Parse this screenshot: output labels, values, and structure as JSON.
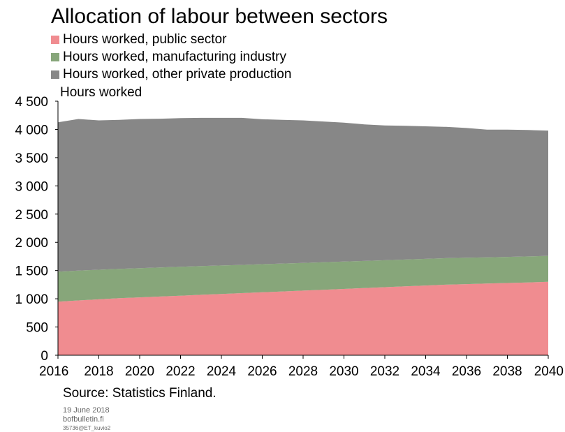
{
  "chart_data": {
    "type": "area",
    "stacked": true,
    "title": "Allocation of labour between sectors",
    "ylabel": "Hours worked",
    "x": [
      2016,
      2017,
      2018,
      2019,
      2020,
      2021,
      2022,
      2023,
      2024,
      2025,
      2026,
      2027,
      2028,
      2029,
      2030,
      2031,
      2032,
      2033,
      2034,
      2035,
      2036,
      2037,
      2038,
      2039,
      2040
    ],
    "xticks": [
      2016,
      2018,
      2020,
      2022,
      2024,
      2026,
      2028,
      2030,
      2032,
      2034,
      2036,
      2038,
      2040
    ],
    "yticks": [
      0,
      500,
      1000,
      1500,
      2000,
      2500,
      3000,
      3500,
      4000,
      4500
    ],
    "ytick_labels": [
      "0",
      "500",
      "1 000",
      "1 500",
      "2 000",
      "2 500",
      "3 000",
      "3 500",
      "4 000",
      "4 500"
    ],
    "ylim": [
      0,
      4500
    ],
    "xlim": [
      2016,
      2040
    ],
    "grid": false,
    "legend_position": "top-left",
    "series": [
      {
        "name": "Hours worked, public sector",
        "color": "#f08c90",
        "values": [
          950,
          970,
          990,
          1010,
          1025,
          1040,
          1055,
          1070,
          1085,
          1100,
          1115,
          1130,
          1145,
          1160,
          1175,
          1190,
          1205,
          1220,
          1235,
          1250,
          1260,
          1270,
          1280,
          1290,
          1300
        ]
      },
      {
        "name": "Hours worked, manufacturing industry",
        "color": "#87a67a",
        "values": [
          530,
          530,
          525,
          520,
          518,
          515,
          512,
          510,
          505,
          500,
          498,
          495,
          490,
          488,
          485,
          480,
          478,
          475,
          472,
          470,
          468,
          465,
          462,
          460,
          460
        ]
      },
      {
        "name": "Hours worked, other private production",
        "color": "#878787",
        "values": [
          2645,
          2685,
          2645,
          2640,
          2642,
          2635,
          2633,
          2625,
          2615,
          2605,
          2567,
          2545,
          2525,
          2492,
          2460,
          2420,
          2387,
          2370,
          2348,
          2325,
          2297,
          2260,
          2253,
          2240,
          2220
        ]
      }
    ]
  },
  "footer": {
    "source": "Source: Statistics Finland.",
    "date": "19 June 2018",
    "site": "bofbulletin.fi",
    "code": "35736@ET_kuvio2"
  }
}
